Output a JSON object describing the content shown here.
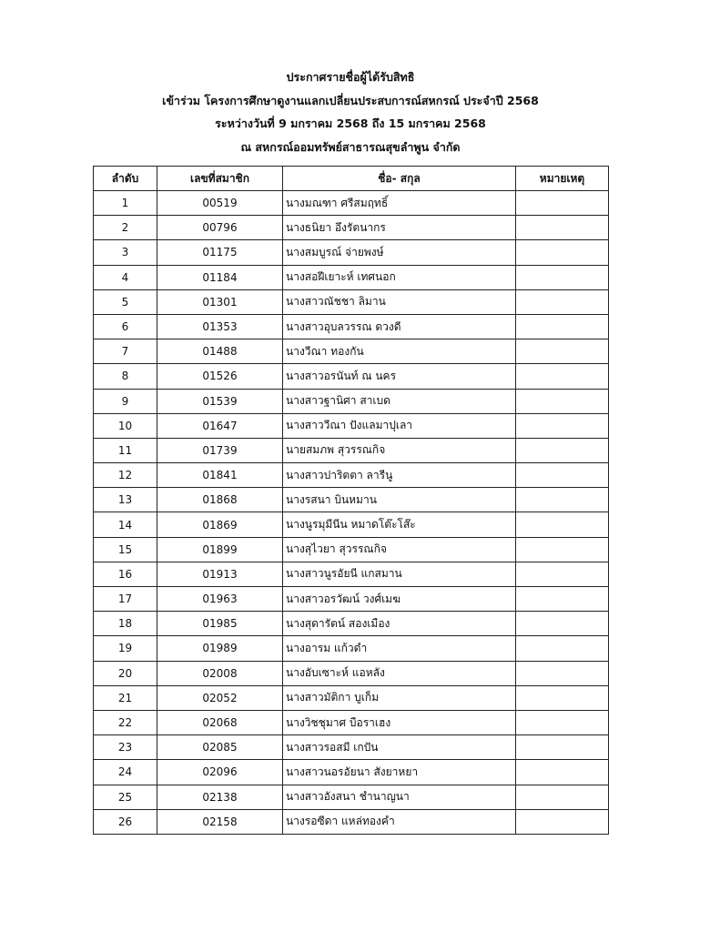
{
  "titles": [
    "ประกาศรายชื่อผู้ได้รับสิทธิ",
    "เข้าร่วม โครงการศึกษาดูงานแลกเปลี่ยนประสบการณ์สหกรณ์ ประจำปี 2568",
    "ระหว่างวันที่ 9 มกราคม 2568 ถึง 15 มกราคม 2568",
    "ณ สหกรณ์ออมทรัพย์สาธารณสุขลำพูน จำกัด"
  ],
  "table": {
    "headers": [
      "ลำดับ",
      "เลขที่สมาชิก",
      "ชื่อ- สกุล",
      "หมายเหตุ"
    ],
    "rows": [
      [
        "1",
        "00519",
        "นางมณฑา ศรีสมฤทธิ์",
        ""
      ],
      [
        "2",
        "00796",
        "นางธนิยา  อึงรัตนากร",
        ""
      ],
      [
        "3",
        "01175",
        "นางสมบูรณ์ จ่ายพงษ์",
        ""
      ],
      [
        "4",
        "01184",
        "นางสอฝีเยาะห์ เทศนอก",
        ""
      ],
      [
        "5",
        "01301",
        "นางสาวณัชชา  ลิมาน",
        ""
      ],
      [
        "6",
        "01353",
        "นางสาวอุบลวรรณ  ดวงดี",
        ""
      ],
      [
        "7",
        "01488",
        "นางวีณา ทองกัน",
        ""
      ],
      [
        "8",
        "01526",
        "นางสาวอรนันท์ ณ นคร",
        ""
      ],
      [
        "9",
        "01539",
        "นางสาวฐานิศา  สาเบด",
        ""
      ],
      [
        "10",
        "01647",
        "นางสาววีณา ปังแลมาปุเลา",
        ""
      ],
      [
        "11",
        "01739",
        "นายสมภพ  สุวรรณกิจ",
        ""
      ],
      [
        "12",
        "01841",
        "นางสาวปาริตตา ลารีนู",
        ""
      ],
      [
        "13",
        "01868",
        "นางรสนา บินหมาน",
        ""
      ],
      [
        "14",
        "01869",
        "นางนูรมุมีนีน หมาดโต๊ะโส๊ะ",
        ""
      ],
      [
        "15",
        "01899",
        "นางสุไวยา  สุวรรณกิจ",
        ""
      ],
      [
        "16",
        "01913",
        "นางสาวนูรอัยนี แกสมาน",
        ""
      ],
      [
        "17",
        "01963",
        "นางสาวอรวัฒน์ วงศ์เมฆ",
        ""
      ],
      [
        "18",
        "01985",
        "นางสุดารัตน์ สองเมือง",
        ""
      ],
      [
        "19",
        "01989",
        "นางอารม แก้วดำ",
        ""
      ],
      [
        "20",
        "02008",
        "นางอับเซาะห์ แอหลัง",
        ""
      ],
      [
        "21",
        "02052",
        "นางสาวมัติกา บูเก็ม",
        ""
      ],
      [
        "22",
        "02068",
        "นางวิชชุมาศ บือราเฮง",
        ""
      ],
      [
        "23",
        "02085",
        "นางสาวรอสมี เกปัน",
        ""
      ],
      [
        "24",
        "02096",
        "นางสาวนอรอัยนา สังยาหยา",
        ""
      ],
      [
        "25",
        "02138",
        "นางสาวอังสนา  ชำนาญนา",
        ""
      ],
      [
        "26",
        "02158",
        "นางรอซีดา  แหล่ทองคำ",
        ""
      ]
    ]
  }
}
